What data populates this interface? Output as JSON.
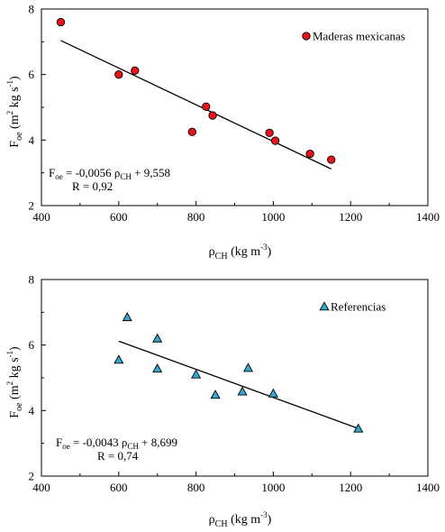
{
  "chart_data": [
    {
      "type": "scatter",
      "title": "",
      "xlabel": {
        "symbol": "ρ",
        "sub": "CH",
        "rest_before": "(kg m",
        "sup": "-3",
        "rest_after": ")"
      },
      "ylabel": {
        "symbol": "F",
        "sub": "oe",
        "rest_before": "(m",
        "sup1": "2",
        "mid": " kg s",
        "sup2": "-1",
        "rest_after": ")"
      },
      "xlim": [
        400,
        1400
      ],
      "ylim": [
        2,
        8
      ],
      "x_ticks": [
        "400",
        "600",
        "800",
        "1000",
        "1200",
        "1400"
      ],
      "y_ticks": [
        "2",
        "4",
        "6",
        "8"
      ],
      "grid": false,
      "legend_position": "top-right",
      "series": [
        {
          "name": "Maderas mexicanas",
          "marker": "circle",
          "color": "#e8131b",
          "points": [
            [
              450,
              7.6
            ],
            [
              600,
              6.0
            ],
            [
              642,
              6.12
            ],
            [
              790,
              4.25
            ],
            [
              826,
              5.02
            ],
            [
              843,
              4.75
            ],
            [
              990,
              4.22
            ],
            [
              1005,
              3.98
            ],
            [
              1095,
              3.58
            ],
            [
              1150,
              3.4
            ]
          ]
        }
      ],
      "trendline": {
        "slope": -0.0056,
        "intercept": 9.558,
        "x_range": [
          450,
          1150
        ]
      },
      "equation": {
        "prefix": "F",
        "prefix_sub": "oe",
        "eq1": " = -0,0056 ",
        "rho": "ρ",
        "rho_sub": "CH",
        "eq2": " + 9,558",
        "r_text": "R  = 0,92"
      }
    },
    {
      "type": "scatter",
      "title": "",
      "xlabel": {
        "symbol": "ρ",
        "sub": "CH",
        "rest_before": "(kg m",
        "sup": "-3",
        "rest_after": ")"
      },
      "ylabel": {
        "symbol": "F",
        "sub": "oe",
        "rest_before": "(m",
        "sup1": "2",
        "mid": " kg s",
        "sup2": "-1",
        "rest_after": ")"
      },
      "xlim": [
        400,
        1400
      ],
      "ylim": [
        2,
        8
      ],
      "x_ticks": [
        "400",
        "600",
        "800",
        "1000",
        "1200",
        "1400"
      ],
      "y_ticks": [
        "2",
        "4",
        "6",
        "8"
      ],
      "grid": false,
      "legend_position": "top-right",
      "series": [
        {
          "name": "Referencias",
          "marker": "triangle",
          "color": "#33a9cf",
          "points": [
            [
              600,
              5.55
            ],
            [
              622,
              6.85
            ],
            [
              700,
              6.2
            ],
            [
              700,
              5.28
            ],
            [
              800,
              5.1
            ],
            [
              850,
              4.48
            ],
            [
              920,
              4.58
            ],
            [
              935,
              5.3
            ],
            [
              1000,
              4.52
            ],
            [
              1220,
              3.45
            ]
          ]
        }
      ],
      "trendline": {
        "slope": -0.0043,
        "intercept": 8.699,
        "x_range": [
          600,
          1220
        ]
      },
      "equation": {
        "prefix": "F",
        "prefix_sub": "oe",
        "eq1": " = -0,0043 ",
        "rho": "ρ",
        "rho_sub": "CH",
        "eq2": " + 8,699",
        "r_text": "R  = 0,74"
      }
    }
  ]
}
